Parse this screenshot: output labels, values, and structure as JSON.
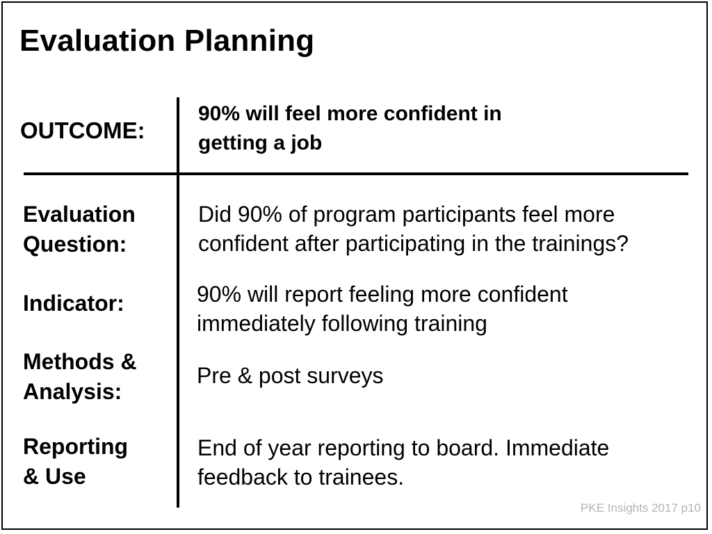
{
  "slide": {
    "title": "Evaluation Planning",
    "outcome": {
      "label": "OUTCOME:",
      "value_lines": [
        "90% will feel more confident in",
        "getting a job"
      ]
    },
    "rows": [
      {
        "label_lines": [
          "Evaluation",
          "Question:"
        ],
        "value_lines": [
          "Did 90% of program participants feel more",
          "confident after participating in the trainings?"
        ]
      },
      {
        "label_lines": [
          "Indicator:"
        ],
        "value_lines": [
          "90% will report feeling more confident",
          "immediately following training"
        ]
      },
      {
        "label_lines": [
          "Methods &",
          "Analysis:"
        ],
        "value_lines": [
          "Pre & post surveys"
        ]
      },
      {
        "label_lines": [
          "Reporting",
          "& Use"
        ],
        "value_lines": [
          "End of year reporting to board. Immediate",
          "feedback to trainees."
        ]
      }
    ],
    "footer": "PKE Insights 2017 p10"
  }
}
